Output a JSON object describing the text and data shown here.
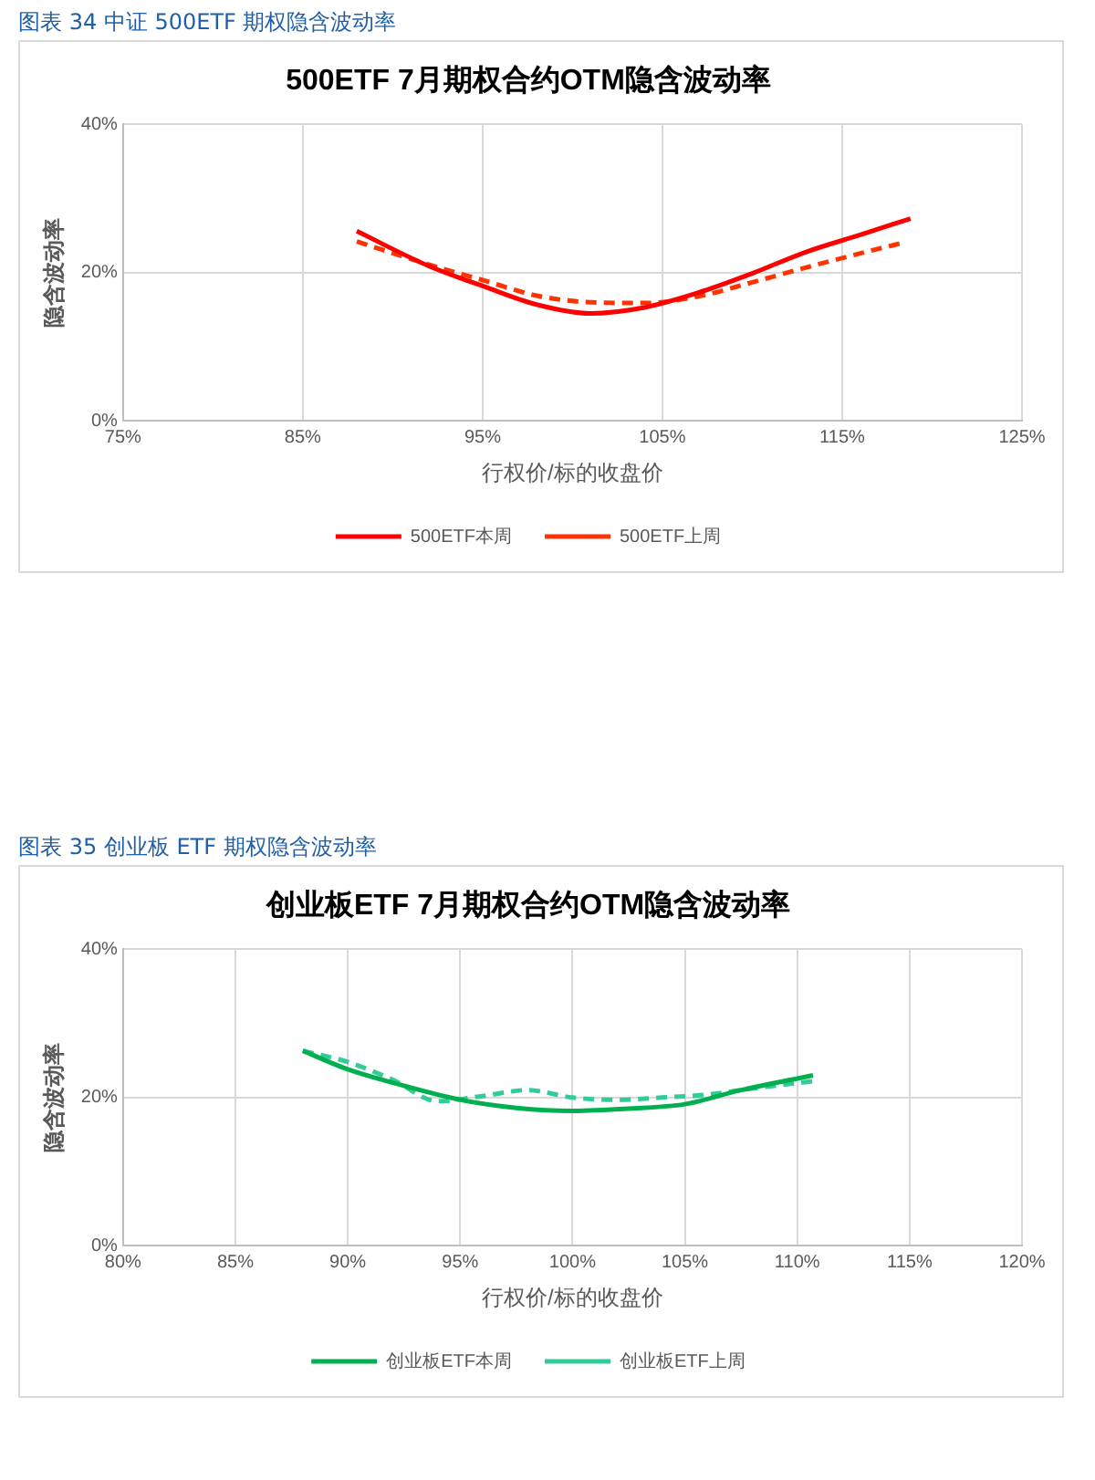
{
  "chart_data": [
    {
      "type": "line",
      "subtitle": "图表 34 中证 500ETF 期权隐含波动率",
      "title": "500ETF 7月期权合约OTM隐含波动率",
      "xlabel": "行权价/标的收盘价",
      "ylabel": "隐含波动率",
      "xlim": [
        75,
        125
      ],
      "xticks": [
        {
          "value": 75,
          "label": "75%"
        },
        {
          "value": 85,
          "label": "85%"
        },
        {
          "value": 95,
          "label": "95%"
        },
        {
          "value": 105,
          "label": "105%"
        },
        {
          "value": 115,
          "label": "115%"
        },
        {
          "value": 125,
          "label": "125%"
        }
      ],
      "ylim": [
        0,
        40
      ],
      "yticks": [
        {
          "value": 0,
          "label": "0%"
        },
        {
          "value": 20,
          "label": "20%"
        },
        {
          "value": 40,
          "label": "40%"
        }
      ],
      "grid": true,
      "legend": "bottom",
      "marker": "none",
      "series": [
        {
          "name": "500ETF本周",
          "color": "#ff0000",
          "line_style": "solid",
          "x": [
            88,
            92,
            95,
            98,
            101,
            104,
            107,
            110,
            113,
            116,
            118.8
          ],
          "values": [
            25.6,
            20.9,
            18.2,
            15.7,
            14.5,
            15.3,
            17.3,
            19.9,
            22.8,
            25.1,
            27.3
          ]
        },
        {
          "name": "500ETF上周",
          "color": "#ff3300",
          "line_style": "dashed",
          "x": [
            88,
            92,
            95,
            98,
            101,
            104,
            107,
            110,
            113,
            116,
            118.5
          ],
          "values": [
            24.2,
            21.1,
            19.0,
            16.9,
            16.0,
            15.9,
            16.8,
            18.7,
            20.7,
            22.6,
            24.1
          ]
        }
      ]
    },
    {
      "type": "line",
      "subtitle": "图表 35 创业板 ETF 期权隐含波动率",
      "title": "创业板ETF 7月期权合约OTM隐含波动率",
      "xlabel": "行权价/标的收盘价",
      "ylabel": "隐含波动率",
      "xlim": [
        80,
        120
      ],
      "xticks": [
        {
          "value": 80,
          "label": "80%"
        },
        {
          "value": 85,
          "label": "85%"
        },
        {
          "value": 90,
          "label": "90%"
        },
        {
          "value": 95,
          "label": "95%"
        },
        {
          "value": 100,
          "label": "100%"
        },
        {
          "value": 105,
          "label": "105%"
        },
        {
          "value": 110,
          "label": "110%"
        },
        {
          "value": 115,
          "label": "115%"
        },
        {
          "value": 120,
          "label": "120%"
        }
      ],
      "ylim": [
        0,
        40
      ],
      "yticks": [
        {
          "value": 0,
          "label": "0%"
        },
        {
          "value": 20,
          "label": "20%"
        },
        {
          "value": 40,
          "label": "40%"
        }
      ],
      "grid": true,
      "legend": "bottom",
      "marker": "none",
      "series": [
        {
          "name": "创业板ETF本周",
          "color": "#00b050",
          "line_style": "solid",
          "x": [
            88,
            90,
            92,
            95,
            97.5,
            100,
            102.5,
            105,
            107.5,
            110.7
          ],
          "values": [
            26.3,
            23.8,
            22.0,
            19.7,
            18.6,
            18.2,
            18.5,
            19.1,
            21.0,
            23.0
          ]
        },
        {
          "name": "创业板ETF上周",
          "color": "#33cc99",
          "line_style": "dashed",
          "x": [
            88,
            90,
            92,
            94,
            96,
            98,
            100,
            102,
            104,
            106,
            108,
            110.7
          ],
          "values": [
            26.3,
            24.8,
            22.4,
            19.5,
            20.2,
            21.0,
            20.0,
            19.7,
            20.0,
            20.4,
            21.2,
            22.2
          ]
        }
      ]
    }
  ]
}
